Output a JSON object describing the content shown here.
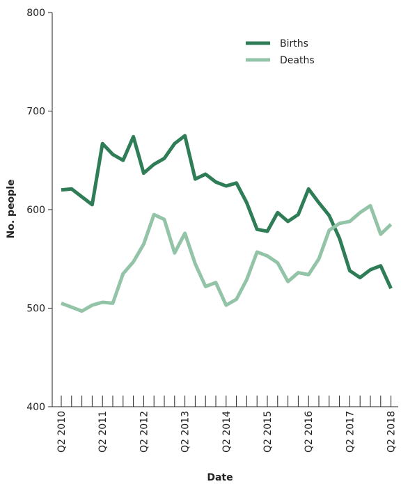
{
  "chart_data": {
    "type": "line",
    "xlabel": "Date",
    "ylabel": "No. people",
    "categories": [
      "Q2 2010",
      null,
      null,
      null,
      "Q2 2011",
      null,
      null,
      null,
      "Q2 2012",
      null,
      null,
      null,
      "Q2 2013",
      null,
      null,
      null,
      "Q2 2014",
      null,
      null,
      null,
      "Q2 2015",
      null,
      null,
      null,
      "Q2 2016",
      null,
      null,
      null,
      "Q2 2017",
      null,
      null,
      null,
      "Q2 2018"
    ],
    "series": [
      {
        "name": "Births",
        "color": "#2e7d57",
        "values": [
          620,
          621,
          613,
          605,
          667,
          656,
          650,
          674,
          637,
          646,
          652,
          667,
          675,
          631,
          636,
          628,
          624,
          627,
          607,
          580,
          578,
          597,
          588,
          595,
          621,
          607,
          594,
          571,
          538,
          531,
          539,
          543,
          520
        ]
      },
      {
        "name": "Deaths",
        "color": "#93c4a8",
        "values": [
          505,
          501,
          497,
          503,
          506,
          505,
          535,
          547,
          565,
          595,
          590,
          556,
          576,
          545,
          522,
          526,
          503,
          509,
          529,
          557,
          553,
          546,
          527,
          536,
          534,
          550,
          579,
          586,
          588,
          597,
          604,
          575,
          585
        ]
      }
    ],
    "ylim": [
      400,
      800
    ],
    "yticks": [
      400,
      500,
      600,
      700,
      800
    ],
    "legend": "upper right"
  }
}
